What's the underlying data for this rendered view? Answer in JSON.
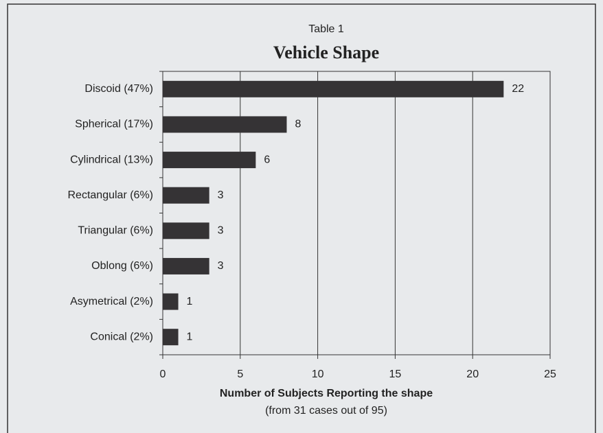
{
  "chart_data": {
    "type": "bar",
    "orientation": "horizontal",
    "title": "Table 1",
    "subtitle": "Vehicle Shape",
    "xlabel": "Number of Subjects Reporting the shape",
    "note": "(from 31 cases out of 95)",
    "categories": [
      "Discoid (47%)",
      "Spherical (17%)",
      "Cylindrical (13%)",
      "Rectangular (6%)",
      "Triangular (6%)",
      "Oblong (6%)",
      "Asymetrical (2%)",
      "Conical (2%)"
    ],
    "values": [
      22,
      8,
      6,
      3,
      3,
      3,
      1,
      1
    ],
    "color": "#353335",
    "xlim": [
      0,
      25
    ],
    "xticks": [
      0,
      5,
      10,
      15,
      20,
      25
    ],
    "grid": true
  }
}
